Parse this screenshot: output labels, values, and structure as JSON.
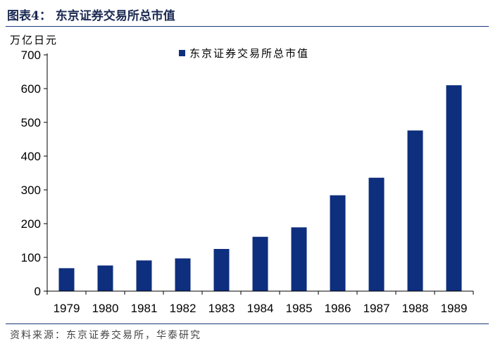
{
  "figure": {
    "title": "图表4：  东京证券交易所总市值",
    "unit_label": "万亿日元",
    "source": "资料来源：东京证券交易所，华泰研究"
  },
  "colors": {
    "bar": "#0e2e7e",
    "axis": "#000000",
    "rule": "#1b3a7a"
  },
  "chart_data": {
    "type": "bar",
    "title": "东京证券交易所总市值",
    "xlabel": "",
    "ylabel": "万亿日元",
    "ylim": [
      0,
      700
    ],
    "yticks": [
      0,
      100,
      200,
      300,
      400,
      500,
      600,
      700
    ],
    "grid": false,
    "legend_position": "top-center",
    "categories": [
      "1979",
      "1980",
      "1981",
      "1982",
      "1983",
      "1984",
      "1985",
      "1986",
      "1987",
      "1988",
      "1989"
    ],
    "series": [
      {
        "name": "东京证券交易所总市值",
        "values": [
          68,
          76,
          91,
          97,
          125,
          161,
          189,
          284,
          336,
          476,
          610
        ]
      }
    ]
  }
}
